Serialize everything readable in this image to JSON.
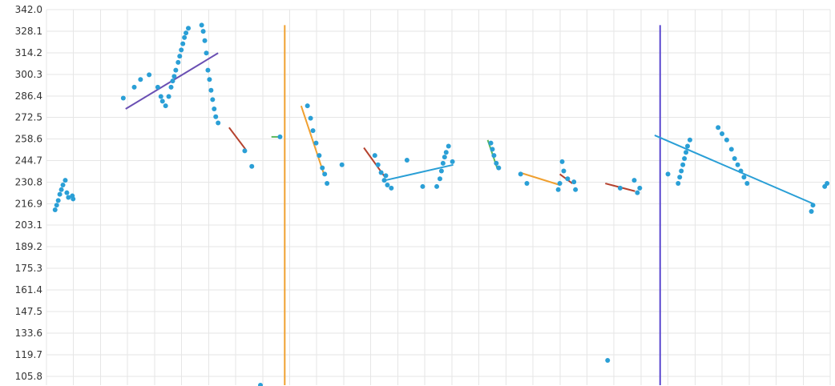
{
  "chart_data": {
    "type": "scatter",
    "title": "",
    "xlabel": "",
    "ylabel": "",
    "ylim": [
      100,
      342
    ],
    "xlim": [
      0,
      1
    ],
    "y_ticks": [
      "342.0",
      "328.1",
      "314.2",
      "300.3",
      "286.4",
      "272.5",
      "258.6",
      "244.7",
      "230.8",
      "216.9",
      "203.1",
      "189.2",
      "175.3",
      "161.4",
      "147.5",
      "133.6",
      "119.7",
      "105.8"
    ],
    "x_grid_count": 29,
    "grid": true,
    "legend": "none",
    "colors": {
      "points": "#2a9fd6",
      "purple": "#6a4fb3",
      "orange": "#f0a030",
      "red": "#b5422e",
      "green": "#5cb85c",
      "blue": "#2a9fd6",
      "violet": "#5a48d0"
    },
    "points": [
      [
        0.011,
        213
      ],
      [
        0.013,
        216
      ],
      [
        0.015,
        219
      ],
      [
        0.017,
        223
      ],
      [
        0.019,
        226
      ],
      [
        0.021,
        229
      ],
      [
        0.024,
        232
      ],
      [
        0.026,
        224
      ],
      [
        0.028,
        221
      ],
      [
        0.033,
        222
      ],
      [
        0.034,
        220
      ],
      [
        0.098,
        285
      ],
      [
        0.112,
        292
      ],
      [
        0.12,
        297
      ],
      [
        0.131,
        300
      ],
      [
        0.142,
        292
      ],
      [
        0.146,
        286
      ],
      [
        0.148,
        283
      ],
      [
        0.152,
        280
      ],
      [
        0.156,
        286
      ],
      [
        0.159,
        292
      ],
      [
        0.161,
        296
      ],
      [
        0.163,
        299
      ],
      [
        0.165,
        303
      ],
      [
        0.168,
        308
      ],
      [
        0.17,
        312
      ],
      [
        0.172,
        316
      ],
      [
        0.174,
        320
      ],
      [
        0.176,
        324
      ],
      [
        0.178,
        327
      ],
      [
        0.181,
        330
      ],
      [
        0.198,
        332
      ],
      [
        0.2,
        328
      ],
      [
        0.202,
        322
      ],
      [
        0.204,
        314
      ],
      [
        0.206,
        303
      ],
      [
        0.208,
        297
      ],
      [
        0.21,
        290
      ],
      [
        0.212,
        284
      ],
      [
        0.214,
        278
      ],
      [
        0.216,
        273
      ],
      [
        0.219,
        269
      ],
      [
        0.253,
        251
      ],
      [
        0.262,
        241
      ],
      [
        0.298,
        260
      ],
      [
        0.273,
        100
      ],
      [
        0.333,
        280
      ],
      [
        0.337,
        272
      ],
      [
        0.34,
        264
      ],
      [
        0.344,
        256
      ],
      [
        0.348,
        248
      ],
      [
        0.352,
        240
      ],
      [
        0.355,
        236
      ],
      [
        0.358,
        230
      ],
      [
        0.377,
        242
      ],
      [
        0.419,
        248
      ],
      [
        0.423,
        242
      ],
      [
        0.427,
        237
      ],
      [
        0.431,
        232
      ],
      [
        0.433,
        235
      ],
      [
        0.435,
        229
      ],
      [
        0.44,
        227
      ],
      [
        0.46,
        245
      ],
      [
        0.48,
        228
      ],
      [
        0.498,
        228
      ],
      [
        0.502,
        233
      ],
      [
        0.504,
        238
      ],
      [
        0.506,
        243
      ],
      [
        0.508,
        247
      ],
      [
        0.51,
        250
      ],
      [
        0.513,
        254
      ],
      [
        0.518,
        244
      ],
      [
        0.567,
        256
      ],
      [
        0.569,
        252
      ],
      [
        0.571,
        248
      ],
      [
        0.574,
        243
      ],
      [
        0.577,
        240
      ],
      [
        0.605,
        236
      ],
      [
        0.613,
        230
      ],
      [
        0.653,
        226
      ],
      [
        0.655,
        230
      ],
      [
        0.658,
        244
      ],
      [
        0.66,
        238
      ],
      [
        0.665,
        233
      ],
      [
        0.673,
        231
      ],
      [
        0.675,
        226
      ],
      [
        0.716,
        116
      ],
      [
        0.732,
        227
      ],
      [
        0.75,
        232
      ],
      [
        0.754,
        224
      ],
      [
        0.757,
        227
      ],
      [
        0.793,
        236
      ],
      [
        0.806,
        230
      ],
      [
        0.808,
        234
      ],
      [
        0.81,
        238
      ],
      [
        0.812,
        242
      ],
      [
        0.814,
        246
      ],
      [
        0.816,
        250
      ],
      [
        0.818,
        254
      ],
      [
        0.821,
        258
      ],
      [
        0.857,
        266
      ],
      [
        0.862,
        262
      ],
      [
        0.868,
        258
      ],
      [
        0.874,
        252
      ],
      [
        0.878,
        246
      ],
      [
        0.882,
        242
      ],
      [
        0.886,
        238
      ],
      [
        0.89,
        234
      ],
      [
        0.894,
        230
      ],
      [
        0.976,
        212
      ],
      [
        0.978,
        216
      ],
      [
        0.993,
        228
      ],
      [
        0.996,
        230
      ]
    ],
    "trend_lines": [
      {
        "color": "purple",
        "x": [
          0.101,
          0.219
        ],
        "y": [
          278,
          314
        ]
      },
      {
        "color": "red",
        "x": [
          0.233,
          0.254
        ],
        "y": [
          266,
          252
        ]
      },
      {
        "color": "green",
        "x": [
          0.287,
          0.296
        ],
        "y": [
          260,
          260
        ]
      },
      {
        "color": "orange",
        "x": [
          0.325,
          0.354
        ],
        "y": [
          280,
          236
        ]
      },
      {
        "color": "red",
        "x": [
          0.405,
          0.432
        ],
        "y": [
          253,
          234
        ]
      },
      {
        "color": "blue",
        "x": [
          0.432,
          0.519
        ],
        "y": [
          232,
          242
        ]
      },
      {
        "color": "green",
        "x": [
          0.563,
          0.575
        ],
        "y": [
          258,
          240
        ]
      },
      {
        "color": "orange",
        "x": [
          0.604,
          0.655
        ],
        "y": [
          237,
          229
        ]
      },
      {
        "color": "red",
        "x": [
          0.655,
          0.671
        ],
        "y": [
          236,
          230
        ]
      },
      {
        "color": "red",
        "x": [
          0.713,
          0.751
        ],
        "y": [
          230,
          225
        ]
      },
      {
        "color": "blue",
        "x": [
          0.776,
          0.978
        ],
        "y": [
          261,
          217
        ]
      }
    ],
    "vertical_lines": [
      {
        "color": "orange",
        "x": 0.304
      },
      {
        "color": "violet",
        "x": 0.783
      }
    ]
  }
}
